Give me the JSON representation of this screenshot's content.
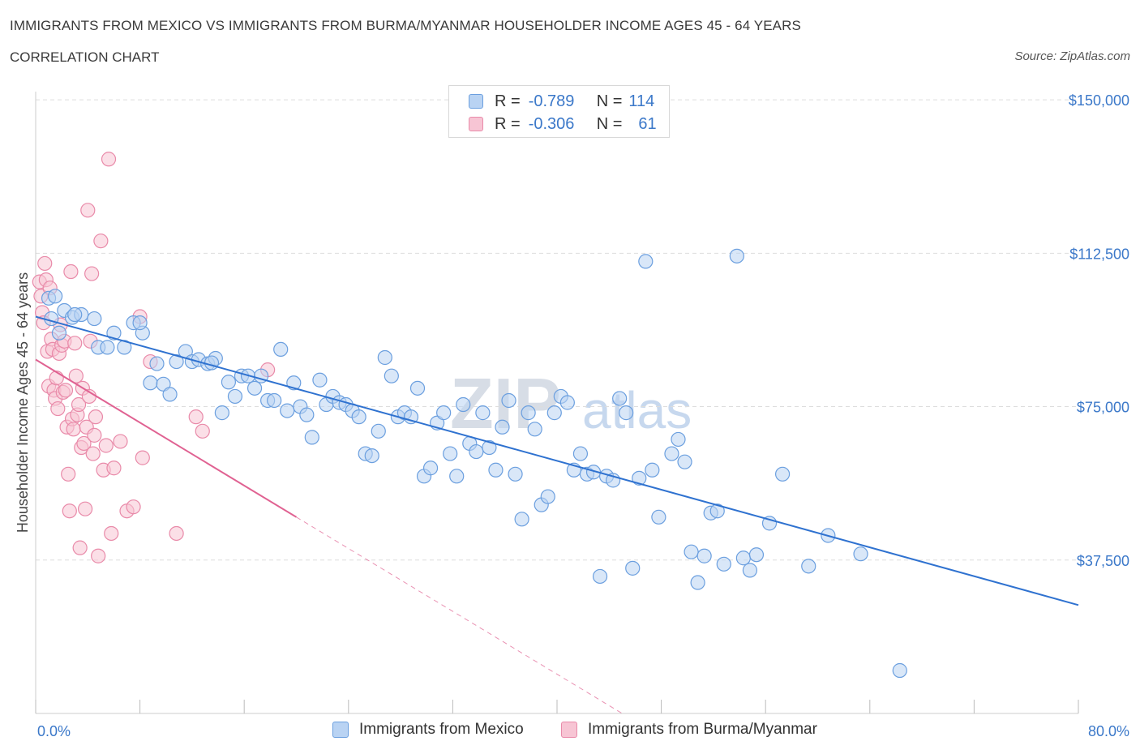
{
  "title": "IMMIGRANTS FROM MEXICO VS IMMIGRANTS FROM BURMA/MYANMAR HOUSEHOLDER INCOME AGES 45 - 64 YEARS",
  "subtitle": "CORRELATION CHART",
  "source": "Source: ZipAtlas.com",
  "watermark": "ZIPatlas",
  "colors": {
    "mexico_fill": "#b9d3f3",
    "mexico_stroke": "#6b9fdf",
    "mexico_line": "#2f72d0",
    "burma_fill": "#f7c5d4",
    "burma_stroke": "#e98aa9",
    "burma_line": "#e06292",
    "value_text": "#3b78c9",
    "grid": "#dddddd"
  },
  "legend": {
    "rows": [
      {
        "r_label": "R =",
        "r_value": "-0.789",
        "n_label": "N =",
        "n_value": "114"
      },
      {
        "r_label": "R =",
        "r_value": "-0.306",
        "n_label": "N =",
        "n_value": "61"
      }
    ]
  },
  "bottom_legend": {
    "mexico": "Immigrants from Mexico",
    "burma": "Immigrants from Burma/Myanmar"
  },
  "chart_data": {
    "type": "scatter",
    "ylabel": "Householder Income Ages 45 - 64 years",
    "xlim": [
      0,
      80
    ],
    "ylim": [
      0,
      152000
    ],
    "x_tick_labels": [
      "0.0%",
      "80.0%"
    ],
    "y_ticks": [
      {
        "value": 37500,
        "label": "$37,500"
      },
      {
        "value": 75000,
        "label": "$75,000"
      },
      {
        "value": 112500,
        "label": "$112,500"
      },
      {
        "value": 150000,
        "label": "$150,000"
      }
    ],
    "series": [
      {
        "name": "Immigrants from Mexico",
        "trend": {
          "x0": 0,
          "y0": 97000,
          "x1": 80,
          "y1": 26500
        },
        "points": [
          [
            1.0,
            101500
          ],
          [
            1.2,
            96500
          ],
          [
            1.8,
            93000
          ],
          [
            2.2,
            98500
          ],
          [
            2.8,
            96800
          ],
          [
            3.5,
            97500
          ],
          [
            4.5,
            96500
          ],
          [
            4.8,
            89500
          ],
          [
            5.5,
            89500
          ],
          [
            6.0,
            93000
          ],
          [
            6.8,
            89500
          ],
          [
            7.5,
            95500
          ],
          [
            8.2,
            93000
          ],
          [
            8.8,
            80800
          ],
          [
            9.3,
            85500
          ],
          [
            9.8,
            80500
          ],
          [
            10.3,
            78000
          ],
          [
            10.8,
            86000
          ],
          [
            11.5,
            88500
          ],
          [
            12.0,
            86000
          ],
          [
            12.5,
            86500
          ],
          [
            13.2,
            85500
          ],
          [
            13.8,
            86800
          ],
          [
            14.3,
            73500
          ],
          [
            14.8,
            81000
          ],
          [
            15.3,
            77500
          ],
          [
            15.8,
            82500
          ],
          [
            16.3,
            82500
          ],
          [
            16.8,
            79500
          ],
          [
            17.3,
            82500
          ],
          [
            17.8,
            76500
          ],
          [
            18.3,
            76500
          ],
          [
            18.8,
            89000
          ],
          [
            19.3,
            74000
          ],
          [
            19.8,
            80800
          ],
          [
            20.3,
            75000
          ],
          [
            20.8,
            73000
          ],
          [
            21.2,
            67500
          ],
          [
            21.8,
            81500
          ],
          [
            22.3,
            75500
          ],
          [
            22.8,
            77500
          ],
          [
            23.3,
            76000
          ],
          [
            23.8,
            75500
          ],
          [
            24.3,
            74000
          ],
          [
            24.8,
            72500
          ],
          [
            25.3,
            63500
          ],
          [
            25.8,
            63000
          ],
          [
            26.3,
            69000
          ],
          [
            26.8,
            87000
          ],
          [
            27.3,
            82500
          ],
          [
            27.8,
            72500
          ],
          [
            28.3,
            73500
          ],
          [
            28.8,
            72500
          ],
          [
            29.3,
            79500
          ],
          [
            29.8,
            58000
          ],
          [
            30.3,
            60000
          ],
          [
            30.8,
            71000
          ],
          [
            31.3,
            73500
          ],
          [
            31.8,
            63500
          ],
          [
            32.3,
            58000
          ],
          [
            32.8,
            75500
          ],
          [
            33.3,
            66000
          ],
          [
            33.8,
            64000
          ],
          [
            34.3,
            73500
          ],
          [
            34.8,
            65000
          ],
          [
            35.3,
            59500
          ],
          [
            35.8,
            70000
          ],
          [
            36.3,
            76500
          ],
          [
            36.8,
            58500
          ],
          [
            37.3,
            47500
          ],
          [
            37.8,
            73500
          ],
          [
            38.3,
            69500
          ],
          [
            38.8,
            51000
          ],
          [
            39.3,
            53000
          ],
          [
            39.8,
            73500
          ],
          [
            40.3,
            77500
          ],
          [
            40.8,
            76000
          ],
          [
            41.3,
            59500
          ],
          [
            41.8,
            63500
          ],
          [
            42.3,
            58500
          ],
          [
            42.8,
            59000
          ],
          [
            43.3,
            33500
          ],
          [
            43.8,
            58000
          ],
          [
            44.3,
            57000
          ],
          [
            44.8,
            77000
          ],
          [
            45.3,
            73500
          ],
          [
            45.8,
            35500
          ],
          [
            46.3,
            57500
          ],
          [
            46.8,
            110500
          ],
          [
            47.3,
            59500
          ],
          [
            47.8,
            48000
          ],
          [
            48.8,
            63500
          ],
          [
            49.3,
            67000
          ],
          [
            49.8,
            61500
          ],
          [
            50.3,
            39500
          ],
          [
            50.8,
            32000
          ],
          [
            51.3,
            38500
          ],
          [
            51.8,
            49000
          ],
          [
            52.3,
            49500
          ],
          [
            52.8,
            36500
          ],
          [
            53.8,
            111800
          ],
          [
            54.3,
            38000
          ],
          [
            54.8,
            35000
          ],
          [
            55.3,
            38800
          ],
          [
            56.3,
            46500
          ],
          [
            57.3,
            58500
          ],
          [
            59.3,
            36000
          ],
          [
            60.8,
            43500
          ],
          [
            63.3,
            39000
          ],
          [
            66.3,
            10500
          ],
          [
            1.5,
            102000
          ],
          [
            3.0,
            97500
          ],
          [
            8.0,
            95500
          ],
          [
            13.5,
            85700
          ]
        ]
      },
      {
        "name": "Immigrants from Burma/Myanmar",
        "trend": {
          "x0": 0,
          "y0": 86500,
          "x1": 20,
          "y1": 48000
        },
        "trend_extension": {
          "x0": 20,
          "y0": 48000,
          "x1": 45,
          "y1": 0
        },
        "points": [
          [
            0.3,
            105500
          ],
          [
            0.4,
            102000
          ],
          [
            0.5,
            98000
          ],
          [
            0.6,
            95500
          ],
          [
            0.7,
            110000
          ],
          [
            0.8,
            106000
          ],
          [
            0.9,
            88500
          ],
          [
            1.0,
            80000
          ],
          [
            1.1,
            104000
          ],
          [
            1.2,
            91500
          ],
          [
            1.3,
            89000
          ],
          [
            1.4,
            79000
          ],
          [
            1.5,
            77000
          ],
          [
            1.6,
            82000
          ],
          [
            1.7,
            74500
          ],
          [
            1.8,
            88000
          ],
          [
            1.9,
            95000
          ],
          [
            2.0,
            90000
          ],
          [
            2.1,
            78500
          ],
          [
            2.2,
            91000
          ],
          [
            2.3,
            79000
          ],
          [
            2.4,
            70000
          ],
          [
            2.5,
            58500
          ],
          [
            2.6,
            49500
          ],
          [
            2.7,
            108000
          ],
          [
            2.8,
            72000
          ],
          [
            2.9,
            69500
          ],
          [
            3.0,
            90500
          ],
          [
            3.1,
            82500
          ],
          [
            3.2,
            73000
          ],
          [
            3.3,
            75500
          ],
          [
            3.4,
            40500
          ],
          [
            3.5,
            65000
          ],
          [
            3.6,
            79500
          ],
          [
            3.7,
            66000
          ],
          [
            3.8,
            50000
          ],
          [
            3.9,
            70000
          ],
          [
            4.0,
            123000
          ],
          [
            4.1,
            77500
          ],
          [
            4.2,
            91000
          ],
          [
            4.3,
            107500
          ],
          [
            4.4,
            63500
          ],
          [
            4.5,
            68000
          ],
          [
            4.6,
            72500
          ],
          [
            4.8,
            38500
          ],
          [
            5.0,
            115500
          ],
          [
            5.2,
            59500
          ],
          [
            5.4,
            65500
          ],
          [
            5.6,
            135500
          ],
          [
            5.8,
            44000
          ],
          [
            6.0,
            60000
          ],
          [
            6.5,
            66500
          ],
          [
            7.0,
            49500
          ],
          [
            7.5,
            50500
          ],
          [
            8.0,
            97000
          ],
          [
            8.2,
            62500
          ],
          [
            8.8,
            86000
          ],
          [
            10.8,
            44000
          ],
          [
            12.3,
            72500
          ],
          [
            12.8,
            69000
          ],
          [
            17.8,
            84000
          ]
        ]
      }
    ]
  }
}
